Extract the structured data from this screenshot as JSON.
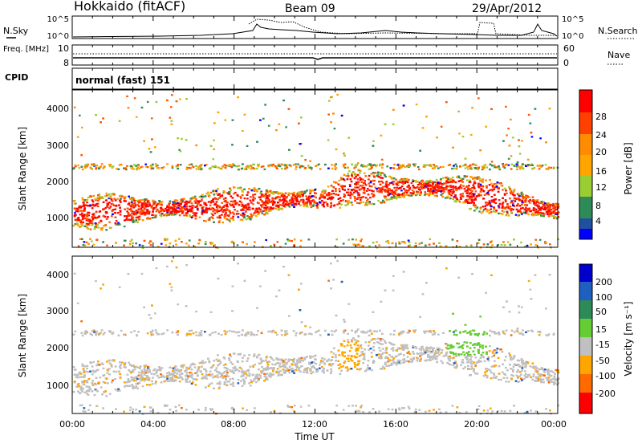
{
  "header": {
    "title": "Hokkaido (fitACF)",
    "beam": "Beam 09",
    "date": "29/Apr/2012"
  },
  "noise_panel": {
    "left_label": "N.Sky",
    "right_label": "N.Search",
    "left_ticks": [
      "10^5",
      "10^0"
    ],
    "right_ticks": [
      "10^5",
      "10^0"
    ]
  },
  "freq_panel": {
    "left_label": "Freq. [MHz]",
    "right_label": "Nave",
    "left_ticks": [
      "10",
      "8"
    ],
    "right_ticks": [
      "60",
      "0"
    ]
  },
  "cpid_panel": {
    "label": "CPID",
    "value": "normal (fast) 151"
  },
  "chart_data": [
    {
      "type": "heatmap",
      "title": "",
      "ylabel": "Slant Range [km]",
      "y_ticks": [
        "1000",
        "2000",
        "3000",
        "4000"
      ],
      "ylim": [
        200,
        4500
      ],
      "colorbar": {
        "label": "Power [dB]",
        "ticks": [
          "4",
          "8",
          "12",
          "16",
          "20",
          "24",
          "28"
        ],
        "range": [
          0,
          32
        ],
        "colors": [
          "#0000ff",
          "#2050a0",
          "#2e8b57",
          "#9acd32",
          "#ffa500",
          "#ff6a00",
          "#ff0000"
        ]
      }
    },
    {
      "type": "heatmap",
      "title": "",
      "ylabel": "Slant Range [km]",
      "y_ticks": [
        "1000",
        "2000",
        "3000",
        "4000"
      ],
      "ylim": [
        200,
        4500
      ],
      "colorbar": {
        "label": "Velocity [m s⁻¹]",
        "ticks": [
          "200",
          "100",
          "50",
          "15",
          "-15",
          "-50",
          "-100",
          "-200"
        ],
        "colors": [
          "#0000cc",
          "#1f5fbf",
          "#2e8b57",
          "#66cc33",
          "#c0c0c0",
          "#ffa500",
          "#ff6a00",
          "#ff0000"
        ]
      }
    }
  ],
  "time_axis": {
    "label": "Time UT",
    "ticks": [
      "00:00",
      "04:00",
      "08:00",
      "12:00",
      "16:00",
      "20:00",
      "00:00"
    ]
  }
}
